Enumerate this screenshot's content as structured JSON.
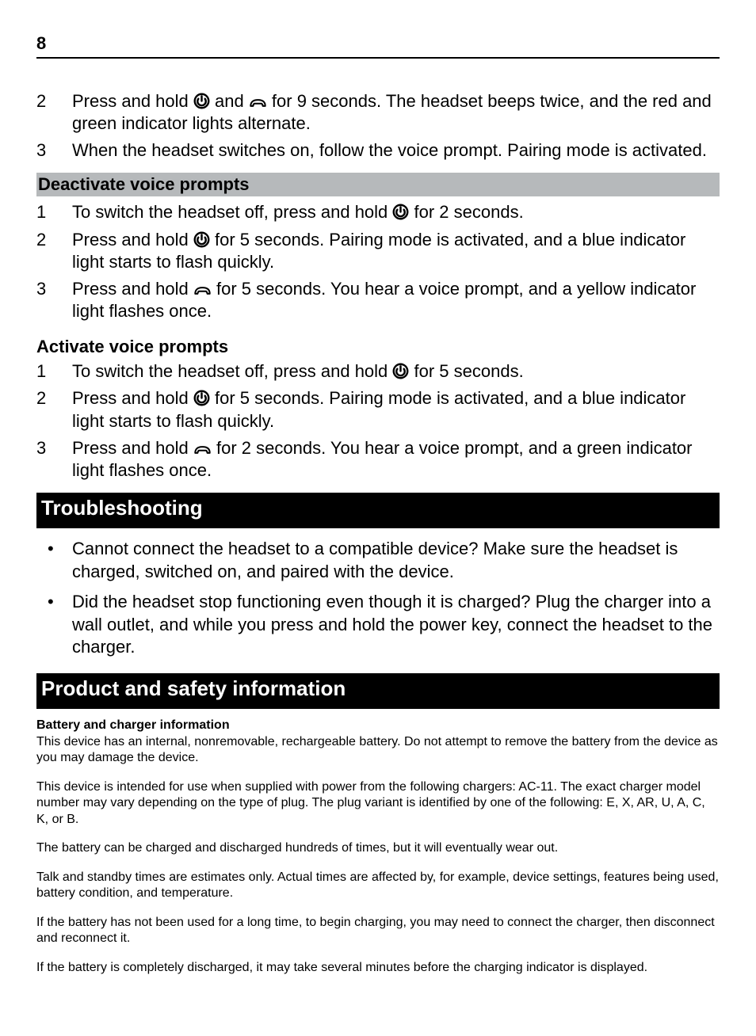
{
  "page_number": "8",
  "icons": {
    "power_svg": "<svg class=\"icon\" width=\"21\" height=\"21\" viewBox=\"0 0 24 24\"><circle cx=\"12\" cy=\"12\" r=\"10\" fill=\"none\" stroke=\"#000\" stroke-width=\"2.8\"/><path d=\"M12 5 L12 12\" stroke=\"#000\" stroke-width=\"2.8\" stroke-linecap=\"round\"/><path d=\"M8 8 A6 6 0 1 0 16 8\" fill=\"none\" stroke=\"#000\" stroke-width=\"2.8\"/></svg>",
    "call_svg": "<svg class=\"icon\" width=\"23\" height=\"16\" viewBox=\"0 0 30 18\"><path d=\"M3 14 Q3 4 15 4 Q27 4 27 14 L23 14 Q23 12 21 10 L9 10 Q7 12 7 14 Z\" fill=\"none\" stroke=\"#000\" stroke-width=\"2.6\" stroke-linejoin=\"round\"/></svg>"
  },
  "lists": {
    "intro": [
      {
        "n": "2",
        "html": "Press and hold {{power}} and {{call}} for 9 seconds. The headset beeps twice, and the red and green indicator lights alternate."
      },
      {
        "n": "3",
        "html": "When the headset switches on, follow the voice prompt. Pairing mode is activated."
      }
    ],
    "deactivate": [
      {
        "n": "1",
        "html": "To switch the headset off, press and hold {{power}} for 2 seconds."
      },
      {
        "n": "2",
        "html": "Press and hold {{power}} for 5 seconds. Pairing mode is activated, and a blue indicator light starts to flash quickly."
      },
      {
        "n": "3",
        "html": "Press and hold {{call}} for 5 seconds. You hear a voice prompt, and a yellow indicator light flashes once."
      }
    ],
    "activate": [
      {
        "n": "1",
        "html": "To switch the headset off, press and hold {{power}} for 5 seconds."
      },
      {
        "n": "2",
        "html": "Press and hold {{power}} for 5 seconds. Pairing mode is activated, and a blue indicator light starts to flash quickly."
      },
      {
        "n": "3",
        "html": "Press and hold {{call}} for 2 seconds. You hear a voice prompt, and a green indicator light flashes once."
      }
    ],
    "troubleshoot": [
      "Cannot connect the headset to a compatible device? Make sure the headset is charged, switched on, and paired with the device.",
      "Did the headset stop functioning even though it is charged? Plug the charger into a wall outlet, and while you press and hold the power key, connect the headset to the charger."
    ]
  },
  "headings": {
    "deactivate": "Deactivate voice prompts",
    "activate": "Activate voice prompts",
    "troubleshoot": "Troubleshooting",
    "product": "Product and safety information",
    "battery": "Battery and charger information"
  },
  "fine_print": [
    "This device has an internal, nonremovable, rechargeable battery. Do not attempt to remove the battery from the device as you may damage the device.",
    "This device is intended for use when supplied with power from the following chargers: AC-11. The exact charger model number may vary depending on the type of plug. The plug variant is identified by one of the following: E, X, AR, U, A, C, K, or B.",
    "The battery can be charged and discharged hundreds of times, but it will eventually wear out.",
    "Talk and standby times are estimates only. Actual times are affected by, for example, device settings, features being used, battery condition, and temperature.",
    "If the battery has not been used for a long time, to begin charging, you may need to connect the charger, then disconnect and reconnect it.",
    "If the battery is completely discharged, it may take several minutes before the charging indicator is displayed."
  ],
  "style": {
    "body_font_size": 22,
    "fine_font_size": 16,
    "black_bar_font_size": 26,
    "grey_bar_color": "#b6b9bb",
    "black_bar_color": "#000000",
    "text_color": "#000000",
    "background_color": "#ffffff"
  }
}
